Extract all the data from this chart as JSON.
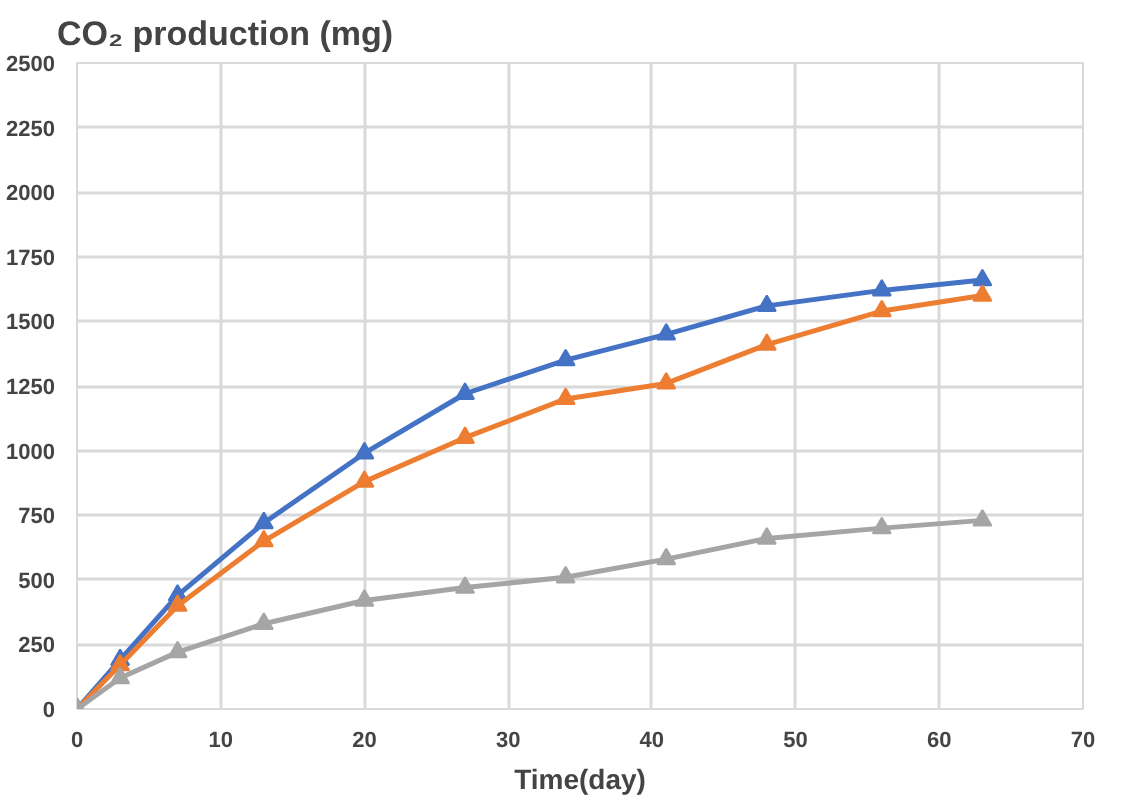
{
  "chart_data": {
    "type": "line",
    "title": "CO₂ production (mg)",
    "xlabel": "Time(day)",
    "x": [
      0,
      3,
      7,
      13,
      20,
      27,
      34,
      41,
      48,
      56,
      63
    ],
    "series": [
      {
        "color": "#4472c4",
        "values": [
          0,
          190,
          440,
          720,
          990,
          1220,
          1350,
          1450,
          1560,
          1620,
          1660
        ]
      },
      {
        "color": "#ed7d31",
        "values": [
          0,
          170,
          400,
          650,
          880,
          1050,
          1200,
          1260,
          1410,
          1540,
          1600
        ]
      },
      {
        "color": "#a5a5a5",
        "values": [
          0,
          120,
          220,
          330,
          420,
          470,
          510,
          580,
          660,
          700,
          730
        ]
      }
    ],
    "xlim": [
      0,
      70
    ],
    "xticks": [
      0,
      10,
      20,
      30,
      40,
      50,
      60,
      70
    ],
    "ylim": [
      0,
      2500
    ],
    "yticks": [
      0,
      250,
      500,
      750,
      1000,
      1250,
      1500,
      1750,
      2000,
      2250,
      2500
    ],
    "grid": true,
    "marker": "triangle",
    "line_style": "solid"
  }
}
